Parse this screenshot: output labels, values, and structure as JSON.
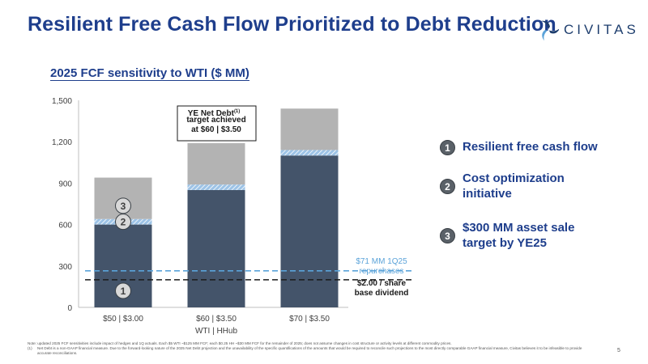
{
  "header": {
    "title": "Resilient Free Cash Flow Prioritized to Debt Reduction",
    "logo_text": "CIVITAS",
    "logo_icon": "civitas-pinwheel-icon"
  },
  "chart_data": {
    "type": "bar",
    "stacked": true,
    "title": "2025 FCF sensitivity to WTI ($ MM)",
    "xlabel": "WTI | HHub",
    "ylabel": "",
    "categories": [
      "$50 | $3.00",
      "$60 | $3.50",
      "$70 | $3.50"
    ],
    "ylim": [
      0,
      1500
    ],
    "yticks": [
      0,
      300,
      600,
      900,
      1200,
      1500
    ],
    "ytick_labels": [
      "0",
      "300",
      "600",
      "900",
      "1,200",
      "1,500"
    ],
    "series": [
      {
        "key": "fcf",
        "values": [
          600,
          850,
          1100
        ],
        "color": "#44546a"
      },
      {
        "key": "cost",
        "values": [
          40,
          40,
          40
        ],
        "color": "#9dc3e6",
        "pattern": "diagonal-hatch"
      },
      {
        "key": "asset_sale",
        "values": [
          300,
          300,
          300
        ],
        "color": "#b3b3b3"
      }
    ],
    "reference_lines": [
      {
        "value": 265,
        "label": "$71 MM 1Q25 repurchases",
        "color": "#5ba3d9",
        "style": "dashed"
      },
      {
        "value": 200,
        "label": "$2.00 / share base dividend",
        "color": "#1a1a1a",
        "style": "dashed"
      }
    ],
    "callout": {
      "text": "YE Net Debt target achieved at $60 | $3.50",
      "lines": [
        "YE Net Debt",
        "target achieved",
        "at $60 | $3.50"
      ],
      "superscript": "(1)"
    },
    "bar_markers": [
      "1",
      "2",
      "3"
    ],
    "grid": false,
    "legend_position": "right"
  },
  "legend": {
    "items": [
      {
        "number": "1",
        "label": "Resilient free cash flow"
      },
      {
        "number": "2",
        "label": "Cost optimization initiative"
      },
      {
        "number": "3",
        "label": "$300 MM asset sale target by YE25"
      }
    ]
  },
  "footer": {
    "note": "Note: updated 2025 FCF sensitivities include impact of hedges and 1Q actuals. Each $5 WTI ~$125 MM FCF; each $0.25 HH ~$30 MM FCF for the remainder of 2025; does not assume changes in cost structure or activity levels at different commodity prices.",
    "footnote_mark": "(1)",
    "footnote": "Net Debt is a non-GAAP financial measure. Due to the forward-looking nature of the 2025 Net Debt projection and the unavailability of the specific quantifications of the amounts that would be required to reconcile such projections to the most directly comparable GAAP financial measure, Civitas believes it to be infeasible to provide accurate reconciliations.",
    "page_number": "5"
  }
}
